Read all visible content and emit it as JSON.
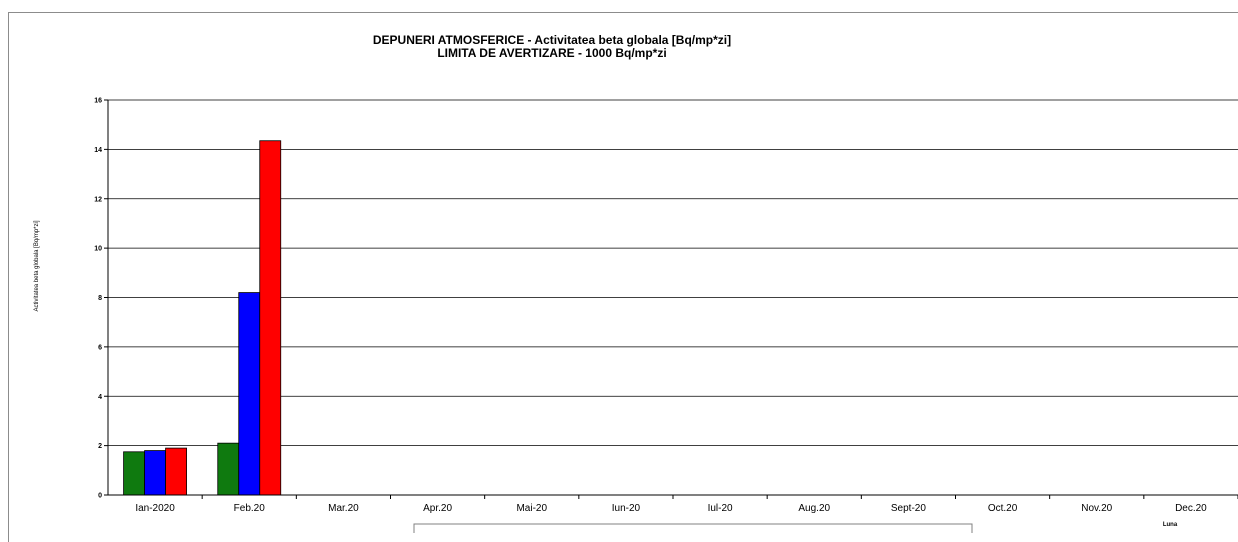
{
  "chart_data": {
    "type": "bar",
    "title": "DEPUNERI ATMOSFERICE - Activitatea beta globala [Bq/mp*zi]",
    "subtitle": "LIMITA DE AVERTIZARE - 1000 Bq/mp*zi",
    "ylabel": "Activitatea beta globala [Bq/mp*zi]",
    "xlabel": "Luna",
    "ylim": [
      0,
      16
    ],
    "yticks": [
      0,
      2,
      4,
      6,
      8,
      10,
      12,
      14,
      16
    ],
    "grid": true,
    "categories": [
      "Ian-2020",
      "Feb.20",
      "Mar.20",
      "Apr.20",
      "Mai-20",
      "Iun-20",
      "Iul-20",
      "Aug.20",
      "Sept-20",
      "Oct.20",
      "Nov.20",
      "Dec.20"
    ],
    "series": [
      {
        "color": "#0f7a0f",
        "values": [
          1.75,
          2.1,
          null,
          null,
          null,
          null,
          null,
          null,
          null,
          null,
          null,
          null
        ]
      },
      {
        "color": "#0000ff",
        "values": [
          1.8,
          8.2,
          null,
          null,
          null,
          null,
          null,
          null,
          null,
          null,
          null,
          null
        ]
      },
      {
        "color": "#ff0000",
        "values": [
          1.9,
          14.35,
          null,
          null,
          null,
          null,
          null,
          null,
          null,
          null,
          null,
          null
        ]
      }
    ]
  }
}
